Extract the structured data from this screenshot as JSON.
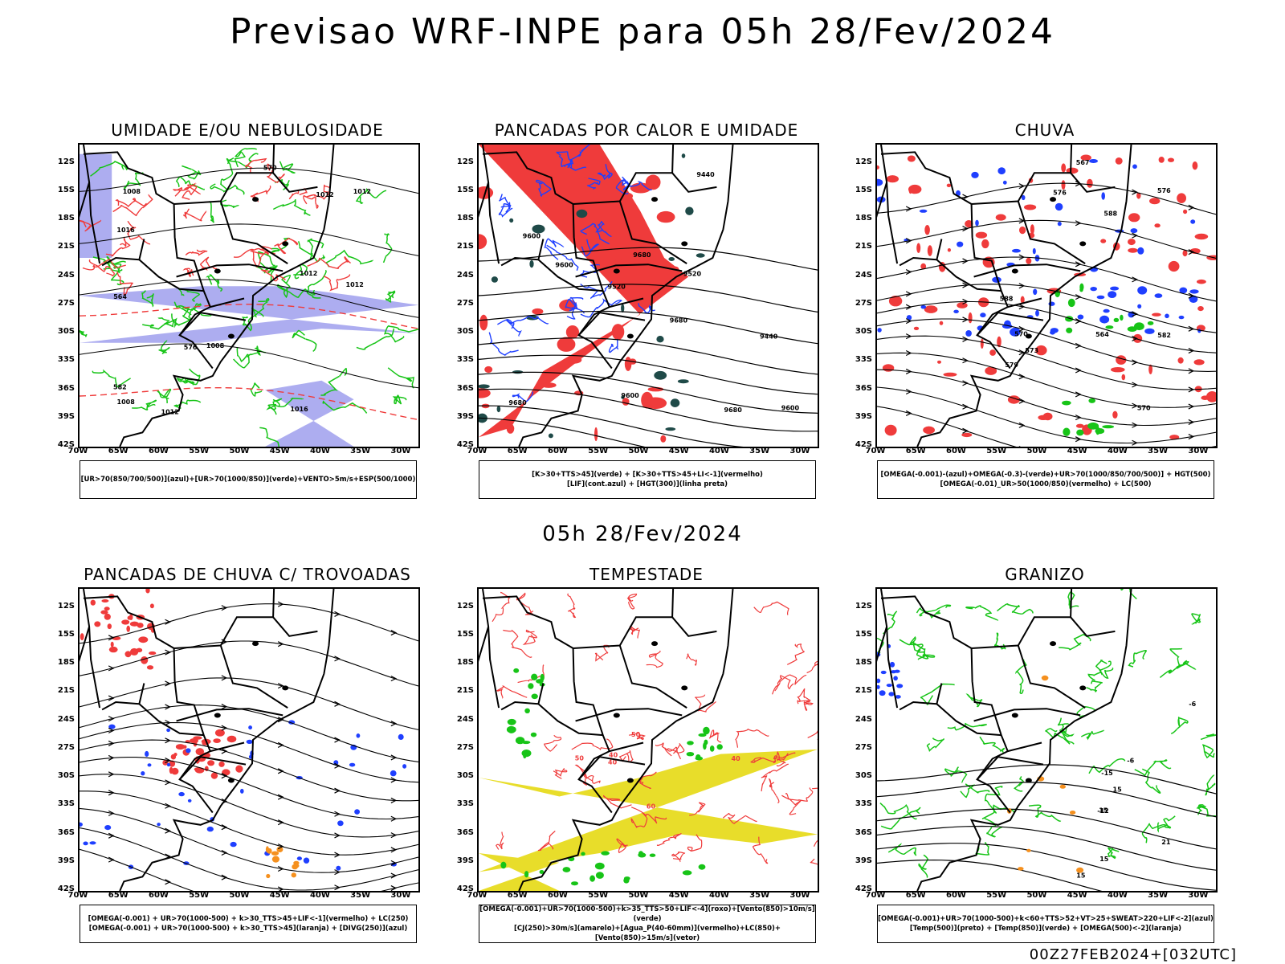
{
  "title": "Previsao WRF-INPE  para 05h 28/Fev/2024",
  "mid_title": "05h 28/Fev/2024",
  "footer": "00Z27FEB2024+[032UTC]",
  "colors": {
    "green": "#17c417",
    "red": "#ef3b3b",
    "blue": "#1f3fff",
    "lavender": "#a4a4ee",
    "yellow": "#e8dd2a",
    "darkteal": "#1f4a48",
    "orange": "#f5901e"
  },
  "chart_data": [
    {
      "type": "map",
      "title": "UMIDADE E/OU NEBULOSIDADE",
      "legend": [
        "[UR>70(850/700/500)](azul)+[UR>70(1000/850)](verde)+VENTO>5m/s+ESP(500/1000)"
      ],
      "lat_ticks": [
        "12S",
        "15S",
        "18S",
        "21S",
        "24S",
        "27S",
        "30S",
        "33S",
        "36S",
        "39S",
        "42S"
      ],
      "lon_ticks": [
        "70W",
        "65W",
        "60W",
        "55W",
        "50W",
        "45W",
        "40W",
        "35W",
        "30W"
      ],
      "contour_labels": [
        "1012",
        "1012",
        "1008",
        "1012",
        "1008",
        "1012",
        "1016",
        "1016",
        "576",
        "570",
        "582",
        "564",
        "1008",
        "1012"
      ]
    },
    {
      "type": "map",
      "title": "PANCADAS POR CALOR E UMIDADE",
      "legend": [
        "[K>30+TTS>45](verde) + [K>30+TTS>45+LI<-1](vermelho)",
        "[LIF](cont.azul) + [HGT(300)](linha preta)"
      ],
      "lat_ticks": [
        "12S",
        "15S",
        "18S",
        "21S",
        "24S",
        "27S",
        "30S",
        "33S",
        "36S",
        "39S",
        "42S"
      ],
      "lon_ticks": [
        "70W",
        "65W",
        "60W",
        "55W",
        "50W",
        "45W",
        "40W",
        "35W",
        "30W"
      ],
      "contour_labels": [
        "9600",
        "9600",
        "9680",
        "9680",
        "9680",
        "9680",
        "9600",
        "9600",
        "9520",
        "9440",
        "9440",
        "9520"
      ]
    },
    {
      "type": "map",
      "title": "CHUVA",
      "legend": [
        "[OMEGA(-0.001)-(azul)+OMEGA(-0.3)-(verde)+UR>70(1000/850/700/500)] + HGT(500)",
        "[OMEGA(-0.01)_UR>50(1000/850)(vermelho) + LC(500)"
      ],
      "lat_ticks": [
        "12S",
        "15S",
        "18S",
        "21S",
        "24S",
        "27S",
        "30S",
        "33S",
        "36S",
        "39S",
        "42S"
      ],
      "lon_ticks": [
        "70W",
        "65W",
        "60W",
        "55W",
        "50W",
        "45W",
        "40W",
        "35W",
        "30W"
      ],
      "contour_labels": [
        "588",
        "588",
        "582",
        "576",
        "576",
        "579",
        "573",
        "570",
        "567",
        "564",
        "570"
      ]
    },
    {
      "type": "map",
      "title": "PANCADAS DE CHUVA C/ TROVOADAS",
      "legend": [
        "[OMEGA(-0.001) + UR>70(1000-500) + k>30_TTS>45+LIF<-1](vermelho) + LC(250)",
        "[OMEGA(-0.001) + UR>70(1000-500) + k>30_TTS>45](laranja) + [DIVG(250)](azul)"
      ],
      "lat_ticks": [
        "12S",
        "15S",
        "18S",
        "21S",
        "24S",
        "27S",
        "30S",
        "33S",
        "36S",
        "39S",
        "42S"
      ],
      "lon_ticks": [
        "70W",
        "65W",
        "60W",
        "55W",
        "50W",
        "45W",
        "40W",
        "35W",
        "30W"
      ],
      "contour_labels": []
    },
    {
      "type": "map",
      "title": "TEMPESTADE",
      "legend": [
        "[OMEGA(-0.001)+UR>70(1000-500)+k>35_TTS>50+LIF<-4](roxo)+[Vento(850)>10m/s](verde)",
        "[CJ(250)>30m/s](amarelo)+[Agua_P(40-60mm)](vermelho)+LC(850)+[Vento(850)>15m/s](vetor)"
      ],
      "lat_ticks": [
        "12S",
        "15S",
        "18S",
        "21S",
        "24S",
        "27S",
        "30S",
        "33S",
        "36S",
        "39S",
        "42S"
      ],
      "lon_ticks": [
        "70W",
        "65W",
        "60W",
        "55W",
        "50W",
        "45W",
        "40W",
        "35W",
        "30W"
      ],
      "contour_labels": [
        "50",
        "40",
        "40",
        "60",
        "50",
        "40"
      ]
    },
    {
      "type": "map",
      "title": "GRANIZO",
      "legend": [
        "[OMEGA(-0.001)+UR>70(1000-500)+k<60+TTS>52+VT>25+SWEAT>220+LIF<-2](azul)",
        "[Temp(500)](preto) + [Temp(850)](verde) + [OMEGA(500)<-2](laranja)"
      ],
      "lat_ticks": [
        "12S",
        "15S",
        "18S",
        "21S",
        "24S",
        "27S",
        "30S",
        "33S",
        "36S",
        "39S",
        "42S"
      ],
      "lon_ticks": [
        "70W",
        "65W",
        "60W",
        "55W",
        "50W",
        "45W",
        "40W",
        "35W",
        "30W"
      ],
      "contour_labels": [
        "21",
        "15",
        "15",
        "15",
        "15",
        "-6",
        "-12",
        "-15",
        "-6"
      ]
    }
  ]
}
